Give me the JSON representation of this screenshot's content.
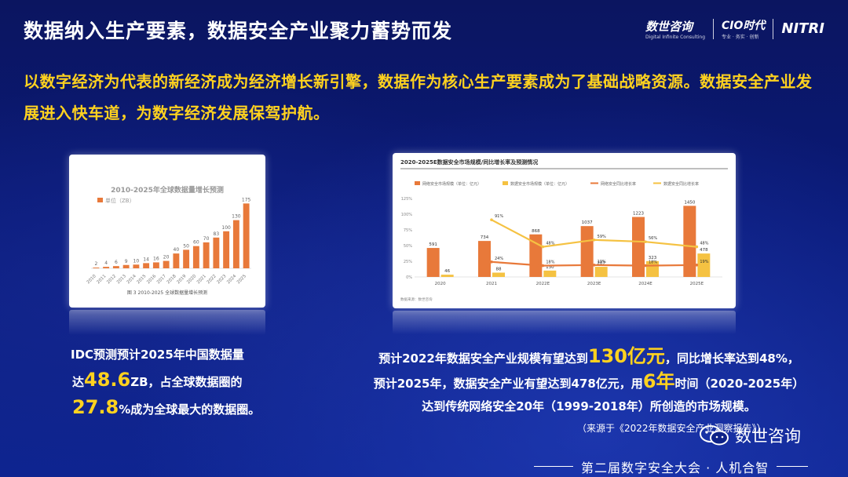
{
  "title": "数据纳入生产要素，数据安全产业聚力蓄势而发",
  "logos": {
    "shushi": "数世咨询",
    "shushi_sub": "Digital Infinite Consulting",
    "cio": "CIO时代",
    "cio_sub": "专业 · 务实 · 创新",
    "nitri": "NITRI"
  },
  "intro": "以数字经济为代表的新经济成为经济增长新引擎，数据作为核心生产要素成为了基础战略资源。数据安全产业发展进入快车道，为数字经济发展保驾护航。",
  "left_stat": {
    "line1": "IDC预测预计2025年中国数据量",
    "line2_pre": "达",
    "value1": "48.6",
    "line2_post": "ZB，占全球数据圈的",
    "value2": "27.8",
    "line3_post": "%成为全球最大的数据圈。"
  },
  "right_stat": {
    "line1_pre": "预计2022年数据安全产业规模有望达到",
    "value1": "130亿元",
    "line1_post": "，同比增长率达到48%，",
    "line2_pre": "预计2025年，数据安全产业有望达到478亿元，用",
    "value2": "6年",
    "line2_post": "时间（2020-2025年）",
    "line3": "达到传统网络安全20年（1999-2018年）所创造的市场规模。"
  },
  "source": "（来源于《2022年数据安全产业洞察报告》）",
  "watermark": "数世咨询",
  "footer": "第二届数字安全大会 · 人机合智",
  "chart_data": [
    {
      "type": "bar",
      "title": "2010-2025年全球数据量增长预测",
      "legend": [
        "单位（ZB）"
      ],
      "caption": "图 3 2010-2025 全球数据量增长预测",
      "categories": [
        "2010",
        "2011",
        "2012",
        "2013",
        "2014",
        "2015",
        "2016",
        "2017",
        "2018",
        "2019",
        "2020",
        "2021",
        "2022",
        "2023",
        "2024",
        "2025"
      ],
      "values": [
        2,
        4,
        6,
        9,
        10,
        14,
        16,
        20,
        40,
        50,
        60,
        70,
        83,
        100,
        130,
        175
      ],
      "ylim": [
        0,
        180
      ],
      "color": "#e8793a"
    },
    {
      "type": "bar",
      "title": "2020-2025E数据安全市场规模/同比增长率及预测情况",
      "categories": [
        "2020",
        "2021",
        "2022E",
        "2023E",
        "2024E",
        "2025E"
      ],
      "legend_position": "top",
      "series": [
        {
          "name": "网络安全市场规模（单位：亿元）",
          "type": "bar",
          "values": [
            591,
            734,
            868,
            1037,
            1223,
            1450
          ],
          "color": "#e8793a"
        },
        {
          "name": "数据安全市场规模（单位：亿元）",
          "type": "bar",
          "values": [
            46,
            88,
            130,
            207,
            323,
            478
          ],
          "color": "#f5c242"
        },
        {
          "name": "网络安全同比增长率",
          "type": "line",
          "values": [
            null,
            24,
            18,
            19,
            18,
            19
          ],
          "color": "#e8793a"
        },
        {
          "name": "数据安全同比增长率",
          "type": "line",
          "values": [
            null,
            91,
            48,
            59,
            56,
            48
          ],
          "color": "#f5c242"
        }
      ],
      "y_tick_labels": [
        "0%",
        "25%",
        "50%",
        "75%",
        "100%",
        "125%"
      ],
      "data_labels_bar1": [
        "591",
        "734",
        "868",
        "1037",
        "1223",
        "1450"
      ],
      "data_labels_bar2": [
        "46",
        "88",
        "130",
        "207",
        "323",
        "478"
      ],
      "data_labels_line1": [
        "",
        "24%",
        "18%",
        "19%",
        "18%",
        "19%"
      ],
      "data_labels_line2": [
        "",
        "91%",
        "48%",
        "59%",
        "56%",
        "48%"
      ],
      "note": "数据来源：数世咨询"
    }
  ]
}
